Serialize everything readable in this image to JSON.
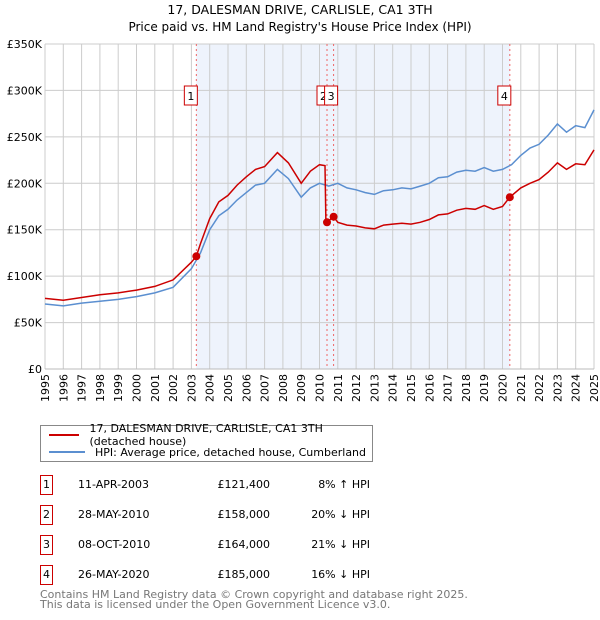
{
  "chart_data": {
    "type": "line",
    "title": "17, DALESMAN DRIVE, CARLISLE, CA1 3TH",
    "subtitle": "Price paid vs. HM Land Registry's House Price Index (HPI)",
    "xlim": [
      1995,
      2025
    ],
    "ylim": [
      0,
      350000
    ],
    "x_ticks": [
      "1995",
      "1996",
      "1997",
      "1998",
      "1999",
      "2000",
      "2001",
      "2002",
      "2003",
      "2004",
      "2005",
      "2006",
      "2007",
      "2008",
      "2009",
      "2010",
      "2011",
      "2012",
      "2013",
      "2014",
      "2015",
      "2016",
      "2017",
      "2018",
      "2019",
      "2020",
      "2021",
      "2022",
      "2023",
      "2024",
      "2025"
    ],
    "y_ticks": [
      {
        "v": 0,
        "label": "£0"
      },
      {
        "v": 50000,
        "label": "£50K"
      },
      {
        "v": 100000,
        "label": "£100K"
      },
      {
        "v": 150000,
        "label": "£150K"
      },
      {
        "v": 200000,
        "label": "£200K"
      },
      {
        "v": 250000,
        "label": "£250K"
      },
      {
        "v": 300000,
        "label": "£300K"
      },
      {
        "v": 350000,
        "label": "£350K"
      }
    ],
    "grid": true,
    "colors": {
      "property": "#cc0000",
      "hpi": "#5b8fd0",
      "shade": "#eef3fc"
    },
    "series": [
      {
        "name": "17, DALESMAN DRIVE, CARLISLE, CA1 3TH (detached house)",
        "key": "property",
        "points": [
          [
            1995,
            76
          ],
          [
            1996,
            74
          ],
          [
            1997,
            77
          ],
          [
            1998,
            80
          ],
          [
            1999,
            82
          ],
          [
            2000,
            85
          ],
          [
            2001,
            89
          ],
          [
            2002,
            96
          ],
          [
            2003,
            115
          ],
          [
            2003.27,
            121.4
          ],
          [
            2003.5,
            135
          ],
          [
            2004,
            162
          ],
          [
            2004.5,
            180
          ],
          [
            2005,
            187
          ],
          [
            2005.5,
            198
          ],
          [
            2006,
            207
          ],
          [
            2006.5,
            215
          ],
          [
            2007,
            218
          ],
          [
            2007.7,
            233
          ],
          [
            2008.3,
            222
          ],
          [
            2009,
            200
          ],
          [
            2009.5,
            213
          ],
          [
            2010,
            220
          ],
          [
            2010.3,
            219
          ],
          [
            2010.35,
            158
          ],
          [
            2010.41,
            158
          ],
          [
            2010.77,
            164
          ],
          [
            2011,
            158
          ],
          [
            2011.5,
            155
          ],
          [
            2012,
            154
          ],
          [
            2012.5,
            152
          ],
          [
            2013,
            151
          ],
          [
            2013.5,
            155
          ],
          [
            2014,
            156
          ],
          [
            2014.5,
            157
          ],
          [
            2015,
            156
          ],
          [
            2015.5,
            158
          ],
          [
            2016,
            161
          ],
          [
            2016.5,
            166
          ],
          [
            2017,
            167
          ],
          [
            2017.5,
            171
          ],
          [
            2018,
            173
          ],
          [
            2018.5,
            172
          ],
          [
            2019,
            176
          ],
          [
            2019.5,
            172
          ],
          [
            2020,
            175
          ],
          [
            2020.4,
            185
          ],
          [
            2021,
            195
          ],
          [
            2021.5,
            200
          ],
          [
            2022,
            204
          ],
          [
            2022.5,
            212
          ],
          [
            2023,
            222
          ],
          [
            2023.5,
            215
          ],
          [
            2024,
            221
          ],
          [
            2024.5,
            220
          ],
          [
            2025,
            236
          ]
        ]
      },
      {
        "name": "HPI: Average price, detached house, Cumberland",
        "key": "hpi",
        "points": [
          [
            1995,
            70
          ],
          [
            1996,
            68
          ],
          [
            1997,
            71
          ],
          [
            1998,
            73
          ],
          [
            1999,
            75
          ],
          [
            2000,
            78
          ],
          [
            2001,
            82
          ],
          [
            2002,
            88
          ],
          [
            2003,
            108
          ],
          [
            2003.5,
            125
          ],
          [
            2004,
            150
          ],
          [
            2004.5,
            165
          ],
          [
            2005,
            172
          ],
          [
            2005.5,
            182
          ],
          [
            2006,
            190
          ],
          [
            2006.5,
            198
          ],
          [
            2007,
            200
          ],
          [
            2007.7,
            215
          ],
          [
            2008.3,
            205
          ],
          [
            2009,
            185
          ],
          [
            2009.5,
            195
          ],
          [
            2010,
            200
          ],
          [
            2010.5,
            197
          ],
          [
            2011,
            200
          ],
          [
            2011.5,
            195
          ],
          [
            2012,
            193
          ],
          [
            2012.5,
            190
          ],
          [
            2013,
            188
          ],
          [
            2013.5,
            192
          ],
          [
            2014,
            193
          ],
          [
            2014.5,
            195
          ],
          [
            2015,
            194
          ],
          [
            2015.5,
            197
          ],
          [
            2016,
            200
          ],
          [
            2016.5,
            206
          ],
          [
            2017,
            207
          ],
          [
            2017.5,
            212
          ],
          [
            2018,
            214
          ],
          [
            2018.5,
            213
          ],
          [
            2019,
            217
          ],
          [
            2019.5,
            213
          ],
          [
            2020,
            215
          ],
          [
            2020.5,
            220
          ],
          [
            2021,
            230
          ],
          [
            2021.5,
            238
          ],
          [
            2022,
            242
          ],
          [
            2022.5,
            252
          ],
          [
            2023,
            264
          ],
          [
            2023.5,
            255
          ],
          [
            2024,
            262
          ],
          [
            2024.5,
            260
          ],
          [
            2025,
            279
          ]
        ]
      }
    ],
    "y_unit": "thousands GBP",
    "sales": [
      {
        "n": "1",
        "x": 2003.27,
        "y": 121.4,
        "date": "11-APR-2003",
        "price": "£121,400",
        "hpi": "8% ↑ HPI"
      },
      {
        "n": "2",
        "x": 2010.41,
        "y": 158,
        "date": "28-MAY-2010",
        "price": "£158,000",
        "hpi": "20% ↓ HPI"
      },
      {
        "n": "3",
        "x": 2010.77,
        "y": 164,
        "date": "08-OCT-2010",
        "price": "£164,000",
        "hpi": "21% ↓ HPI"
      },
      {
        "n": "4",
        "x": 2020.4,
        "y": 185,
        "date": "26-MAY-2020",
        "price": "£185,000",
        "hpi": "16% ↓ HPI"
      }
    ],
    "shaded_range": [
      2003.27,
      2020.4
    ]
  },
  "footer": {
    "line1": "Contains HM Land Registry data © Crown copyright and database right 2025.",
    "line2": "This data is licensed under the Open Government Licence v3.0."
  }
}
